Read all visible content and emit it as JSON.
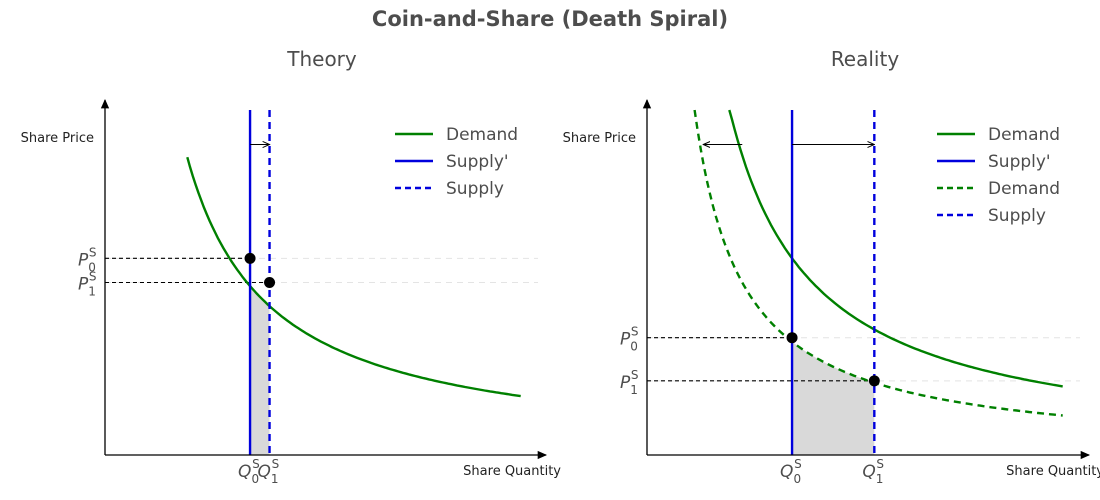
{
  "figure": {
    "title": "Coin-and-Share (Death Spiral)"
  },
  "chart_data": [
    {
      "type": "line",
      "title": "Theory",
      "xlabel": "Share Quantity",
      "ylabel": "Share Price",
      "xlim": [
        0,
        10
      ],
      "ylim": [
        0,
        10
      ],
      "series": [
        {
          "name": "Demand",
          "kind": "demand",
          "k": 16.4,
          "x_from": 1.9,
          "x_to": 9.6,
          "color": "#008000",
          "dash": "solid"
        },
        {
          "name": "Supply'",
          "kind": "supply",
          "x": 3.35,
          "color": "#0000dd",
          "dash": "solid"
        },
        {
          "name": "Supply",
          "kind": "supply",
          "x": 3.8,
          "color": "#0000dd",
          "dash": "dashed"
        }
      ],
      "points": [
        {
          "label": "P0S/Q0S",
          "x": 3.35,
          "y": 5.7
        },
        {
          "label": "P1S/Q1S",
          "x": 3.8,
          "y": 5.0
        }
      ],
      "x_ticks": [
        {
          "q": "Q",
          "sub": "0",
          "sup": "S",
          "x": 3.35
        },
        {
          "q": "Q",
          "sub": "1",
          "sup": "S",
          "x": 3.8
        }
      ],
      "y_ticks": [
        {
          "p": "P",
          "sub": "0",
          "sup": "S",
          "y": 5.7
        },
        {
          "p": "P",
          "sub": "1",
          "sup": "S",
          "y": 5.0
        }
      ],
      "arrows": [
        {
          "from": 3.35,
          "to": 3.8,
          "y": 9.0
        }
      ],
      "shade": {
        "from": 3.35,
        "to": 3.8
      },
      "legend": "top-right"
    },
    {
      "type": "line",
      "title": "Reality",
      "xlabel": "Share Quantity",
      "ylabel": "Share Price",
      "xlim": [
        0,
        10
      ],
      "ylim": [
        0,
        10
      ],
      "series": [
        {
          "name": "Demand",
          "kind": "demand",
          "k": 19.1,
          "x_from": 1.9,
          "x_to": 9.6,
          "color": "#008000",
          "dash": "solid"
        },
        {
          "name": "Supply'",
          "kind": "supply",
          "x": 3.35,
          "color": "#0000dd",
          "dash": "solid"
        },
        {
          "name": "Demand",
          "kind": "demand",
          "k": 11.0,
          "x_from": 1.1,
          "x_to": 9.6,
          "color": "#008000",
          "dash": "dashed"
        },
        {
          "name": "Supply",
          "kind": "supply",
          "x": 5.25,
          "color": "#0000dd",
          "dash": "dashed"
        }
      ],
      "points": [
        {
          "label": "P0S/Q0S",
          "x": 3.35,
          "y": 3.4
        },
        {
          "label": "P1S/Q1S",
          "x": 5.25,
          "y": 2.15
        }
      ],
      "x_ticks": [
        {
          "q": "Q",
          "sub": "0",
          "sup": "S",
          "x": 3.35
        },
        {
          "q": "Q",
          "sub": "1",
          "sup": "S",
          "x": 5.25
        }
      ],
      "y_ticks": [
        {
          "p": "P",
          "sub": "0",
          "sup": "S",
          "y": 3.4
        },
        {
          "p": "P",
          "sub": "1",
          "sup": "S",
          "y": 2.15
        }
      ],
      "arrows": [
        {
          "from": 3.35,
          "to": 5.25,
          "y": 9.0
        },
        {
          "from": 2.2,
          "to": 1.3,
          "y": 9.0
        }
      ],
      "shade": {
        "from": 3.35,
        "to": 5.25
      },
      "legend": "top-right"
    }
  ]
}
